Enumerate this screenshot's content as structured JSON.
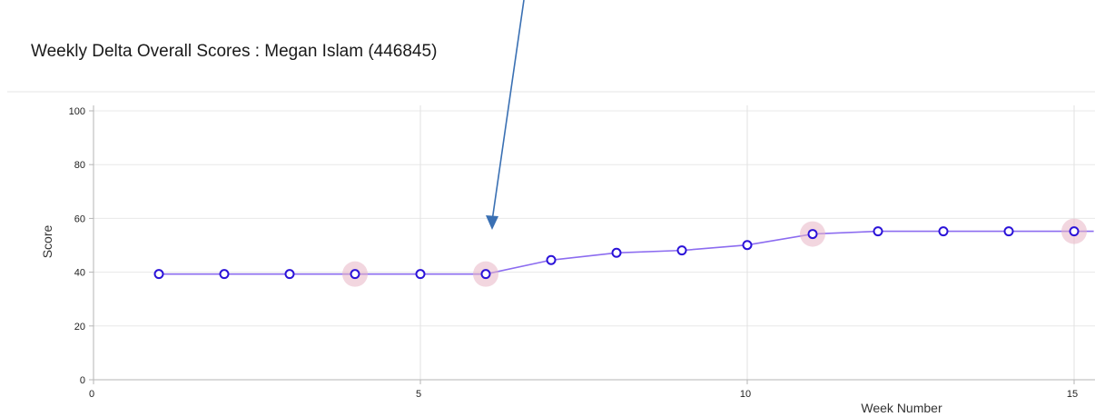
{
  "chart_data": {
    "type": "line",
    "title": "Weekly Delta Overall Scores : Megan Islam (446845)",
    "xlabel": "Week Number",
    "ylabel": "Score",
    "xlim": [
      0,
      15.3
    ],
    "ylim": [
      0,
      100
    ],
    "x_ticks": [
      0,
      5,
      10,
      15
    ],
    "y_ticks": [
      0,
      20,
      40,
      60,
      80,
      100
    ],
    "grid": true,
    "series": [
      {
        "x": [
          1,
          2,
          3,
          4,
          5,
          6,
          7,
          8,
          9,
          10,
          11,
          12,
          13,
          14,
          15,
          15.3
        ],
        "values": [
          39.3,
          39.3,
          39.3,
          39.3,
          39.3,
          39.3,
          44.5,
          47.2,
          48.1,
          50.1,
          54.2,
          55.2,
          55.2,
          55.2,
          55.2,
          55.2
        ],
        "markers": [
          true,
          true,
          true,
          true,
          true,
          true,
          true,
          true,
          true,
          true,
          true,
          true,
          true,
          true,
          true,
          false
        ],
        "highlighted_weeks": [
          4,
          6,
          11,
          15
        ]
      }
    ],
    "annotation": {
      "type": "arrow",
      "points_to_week": 6
    },
    "colors": {
      "line": "#8c6cf0",
      "marker_stroke": "#2a12d8",
      "highlight": "#e8b4c4",
      "arrow": "#3a70b3"
    }
  }
}
